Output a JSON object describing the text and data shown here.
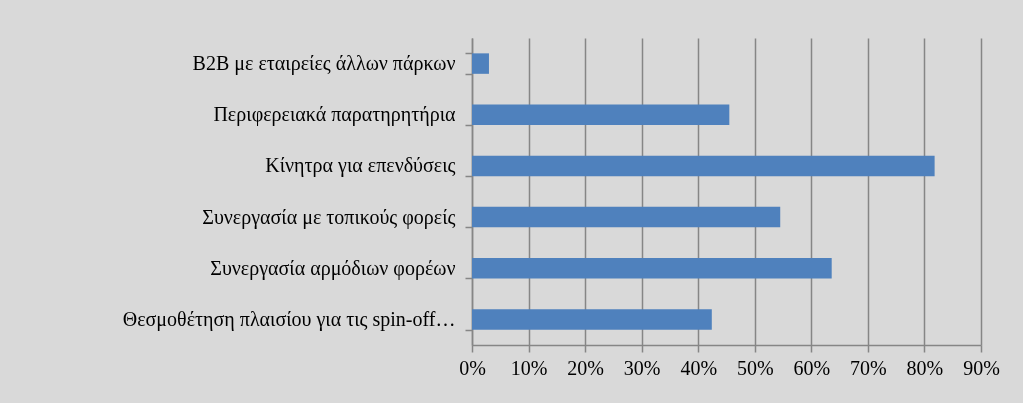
{
  "chart_data": {
    "type": "bar",
    "orientation": "horizontal",
    "categories": [
      "B2B με εταιρείες άλλων πάρκων",
      "Περιφερειακά παρατηρητήρια",
      "Κίνητρα για επενδύσεις",
      "Συνεργασία με τοπικούς φορείς",
      "Συνεργασία αρμόδιων φορέων",
      "Θεσμοθέτηση πλαισίου για τις spin-off…"
    ],
    "values": [
      3.0,
      45.5,
      81.8,
      54.5,
      63.6,
      42.4
    ],
    "color": "#4f81bd",
    "xlim": [
      0,
      90
    ],
    "xticks": [
      {
        "value": 0,
        "label": "0%"
      },
      {
        "value": 10,
        "label": "10%"
      },
      {
        "value": 20,
        "label": "20%"
      },
      {
        "value": 30,
        "label": "30%"
      },
      {
        "value": 40,
        "label": "40%"
      },
      {
        "value": 50,
        "label": "50%"
      },
      {
        "value": 60,
        "label": "60%"
      },
      {
        "value": 70,
        "label": "70%"
      },
      {
        "value": 80,
        "label": "80%"
      },
      {
        "value": 90,
        "label": "90%"
      }
    ],
    "grid": "x"
  }
}
